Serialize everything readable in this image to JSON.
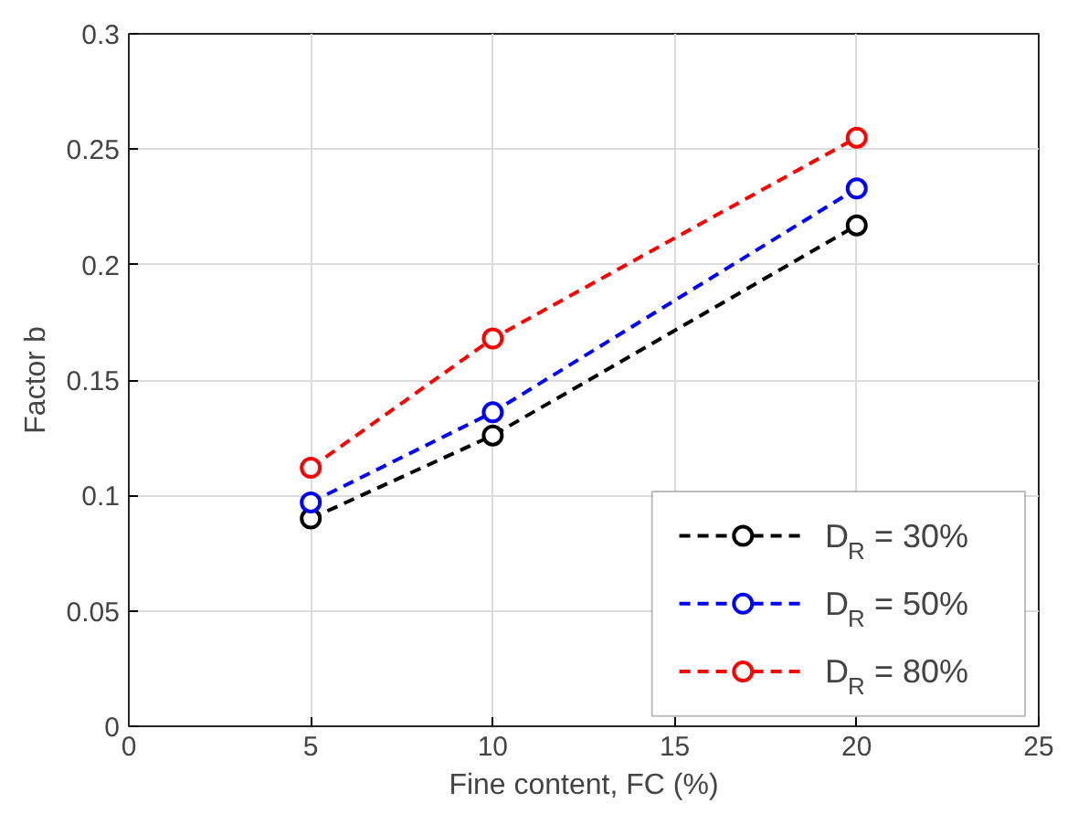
{
  "chart_data": {
    "type": "line",
    "xlabel": "Fine content, FC (%)",
    "ylabel": "Factor b",
    "x": [
      5,
      10,
      20
    ],
    "series": [
      {
        "name": "D$_{R}$ = 30%",
        "color": "#000000",
        "values": [
          0.09,
          0.126,
          0.217
        ]
      },
      {
        "name": "D$_{R}$ = 50%",
        "color": "#0000ff",
        "values": [
          0.097,
          0.136,
          0.233
        ]
      },
      {
        "name": "D$_{R}$ = 80%",
        "color": "#ff0000",
        "values": [
          0.112,
          0.168,
          0.255
        ]
      }
    ],
    "xlim": [
      0,
      25
    ],
    "xticks": [
      0,
      5,
      10,
      15,
      20,
      25
    ],
    "ylim": [
      0,
      0.3
    ],
    "yticks": [
      0,
      {
        "value": 0.05,
        "label": "0.05"
      },
      {
        "value": 0.1,
        "label": "0.1"
      },
      {
        "value": 0.15,
        "label": "0.15"
      },
      {
        "value": 0.2,
        "label": "0.2"
      },
      {
        "value": 0.25,
        "label": "0.25"
      },
      {
        "value": 0.3,
        "label": "0.3"
      }
    ],
    "grid": true,
    "legend": "bottom right",
    "marker": "circle",
    "line_style": "dashed"
  }
}
